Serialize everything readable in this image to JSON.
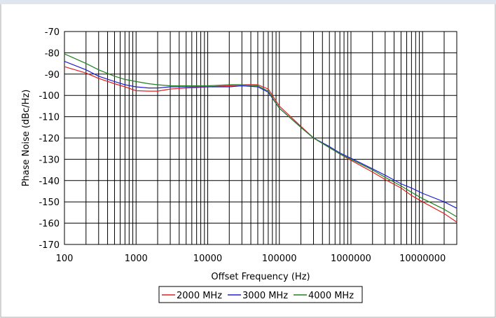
{
  "chart_data": {
    "type": "line",
    "title": "",
    "xlabel": "Offset Frequency (Hz)",
    "ylabel": "Phase Noise (dBc/Hz)",
    "x_scale": "log",
    "xlim": [
      100,
      30000000
    ],
    "ylim": [
      -170,
      -70
    ],
    "x_ticks": [
      100,
      1000,
      10000,
      100000,
      1000000,
      10000000
    ],
    "x_tick_labels": [
      "100",
      "1000",
      "10000",
      "100000",
      "1000000",
      "10000000"
    ],
    "y_ticks": [
      -70,
      -80,
      -90,
      -100,
      -110,
      -120,
      -130,
      -140,
      -150,
      -160,
      -170
    ],
    "y_tick_labels": [
      "-70",
      "-80",
      "-90",
      "-100",
      "-110",
      "-120",
      "-130",
      "-140",
      "-150",
      "-160",
      "-170"
    ],
    "grid": true,
    "legend_position": "bottom",
    "series": [
      {
        "name": "2000 MHz",
        "color": "#e02020",
        "x": [
          100,
          200,
          300,
          500,
          700,
          1000,
          1500,
          2000,
          3000,
          5000,
          7000,
          10000,
          20000,
          30000,
          50000,
          70000,
          100000,
          200000,
          300000,
          500000,
          700000,
          1000000,
          2000000,
          3000000,
          5000000,
          7000000,
          10000000,
          20000000,
          30000000
        ],
        "values": [
          -86.5,
          -89.5,
          -92,
          -94.5,
          -96,
          -97.8,
          -98,
          -98,
          -97,
          -96.5,
          -96.3,
          -96,
          -95.5,
          -95,
          -95,
          -97,
          -105,
          -114.5,
          -120,
          -124.5,
          -127.5,
          -130.5,
          -136,
          -139.5,
          -143.5,
          -147,
          -150,
          -155.5,
          -159.5
        ]
      },
      {
        "name": "3000 MHz",
        "color": "#2020d0",
        "x": [
          100,
          200,
          300,
          500,
          700,
          1000,
          1500,
          2000,
          3000,
          5000,
          7000,
          10000,
          20000,
          30000,
          50000,
          70000,
          100000,
          200000,
          300000,
          500000,
          700000,
          1000000,
          2000000,
          3000000,
          5000000,
          7000000,
          10000000,
          20000000,
          30000000
        ],
        "values": [
          -84,
          -88,
          -91,
          -93.5,
          -95,
          -96,
          -96.5,
          -96.5,
          -96,
          -96,
          -96,
          -96,
          -96,
          -95.5,
          -96,
          -98.5,
          -106,
          -115,
          -120,
          -124,
          -127,
          -129.5,
          -134.5,
          -137.5,
          -141.5,
          -143.5,
          -146,
          -150,
          -153
        ]
      },
      {
        "name": "4000 MHz",
        "color": "#208020",
        "x": [
          100,
          200,
          300,
          500,
          700,
          1000,
          1500,
          2000,
          3000,
          5000,
          7000,
          10000,
          20000,
          30000,
          50000,
          70000,
          100000,
          200000,
          300000,
          500000,
          700000,
          1000000,
          2000000,
          3000000,
          5000000,
          7000000,
          10000000,
          20000000,
          30000000
        ],
        "values": [
          -80.5,
          -85,
          -88,
          -91,
          -92.5,
          -93.5,
          -94.5,
          -95,
          -95.5,
          -95.5,
          -95.5,
          -95.5,
          -95,
          -95,
          -95.5,
          -98,
          -106,
          -115,
          -120,
          -124.5,
          -127.5,
          -130,
          -135,
          -138.5,
          -142.5,
          -145.5,
          -148.5,
          -153.5,
          -157
        ]
      }
    ]
  }
}
